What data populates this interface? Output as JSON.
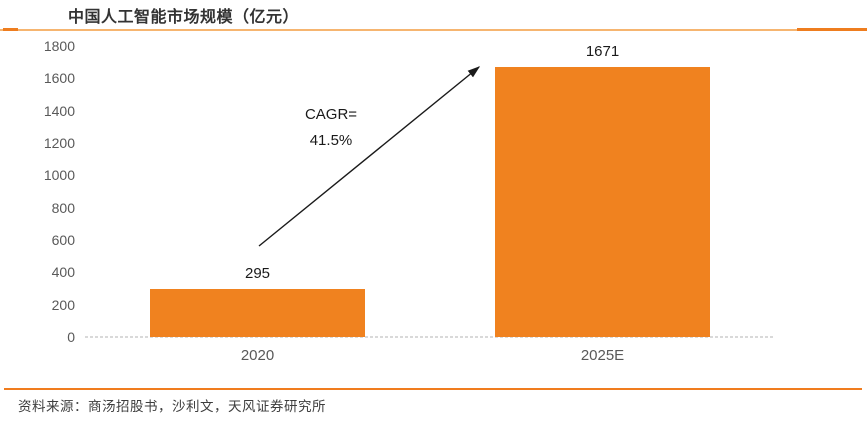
{
  "header": {
    "title": "中国人工智能市场规模（亿元）"
  },
  "annotation": {
    "line1": "CAGR=",
    "line2": "41.5%"
  },
  "footer": {
    "source": "资料来源：商汤招股书，沙利文，天风证券研究所"
  },
  "colors": {
    "bar": "#F0821F",
    "header_rule_light": "#F6B570",
    "header_rule_dark": "#EE7D1F",
    "footer_rule": "#F07C1E",
    "axis_label": "#595959",
    "data_label": "#1A1A1A",
    "axis_line": "#D9D9D9"
  },
  "chart_data": {
    "type": "bar",
    "title": "中国人工智能市场规模（亿元）",
    "categories": [
      "2020",
      "2025E"
    ],
    "values": [
      295,
      1671
    ],
    "data_labels": [
      "295",
      "1671"
    ],
    "xlabel": "",
    "ylabel": "",
    "ylim": [
      0,
      1800
    ],
    "y_ticks": [
      0,
      200,
      400,
      600,
      800,
      1000,
      1200,
      1400,
      1600,
      1800
    ],
    "bar_color": "#F0821F",
    "annotation": "CAGR= 41.5%",
    "grid": "off",
    "legend": "none"
  }
}
